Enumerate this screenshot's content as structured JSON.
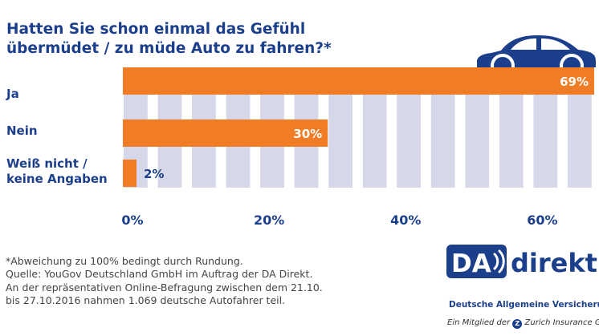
{
  "title": {
    "line1": "Hatten Sie schon einmal das Gefühl",
    "line2": "übermüdet / zu müde Auto zu fahren?*"
  },
  "colors": {
    "bar": "#f07d26",
    "background_column": "#d6d8e9",
    "text": "#1c3f8c"
  },
  "icons": [
    "car-icon",
    "wave-icon",
    "zurich-z-icon"
  ],
  "chart_data": {
    "type": "bar",
    "orientation": "horizontal",
    "title": "Hatten Sie schon einmal das Gefühl übermüdet / zu müde Auto zu fahren?*",
    "categories": [
      "Ja",
      "Nein",
      "Weiß nicht / keine Angaben"
    ],
    "category_lines": [
      [
        "Ja"
      ],
      [
        "Nein"
      ],
      [
        "Weiß nicht /",
        "keine Angaben"
      ]
    ],
    "values": [
      69,
      30,
      2
    ],
    "value_labels": [
      "69%",
      "30%",
      "2%"
    ],
    "xlim": [
      0,
      69
    ],
    "ticks": [
      0,
      20,
      40,
      60
    ],
    "tick_labels": [
      "0%",
      "20%",
      "40%",
      "60%"
    ],
    "xlabel": "",
    "ylabel": "",
    "grid": false
  },
  "footnote": {
    "line1": "*Abweichung zu 100% bedingt durch Rundung.",
    "line2": "Quelle: YouGov Deutschland GmbH im Auftrag der DA Direkt.",
    "line3": "An der repräsentativen Online-Befragung zwischen dem 21.10.",
    "line4": "bis 27.10.2016 nahmen 1.069 deutsche Autofahrer teil."
  },
  "logo": {
    "brand_left": "DA",
    "brand_right": "direkt",
    "subtitle": "Deutsche Allgemeine Versicherung",
    "member_prefix": "Ein Mitglied der",
    "member_badge": "Z",
    "member_suffix": "Zurich Insurance Gr"
  }
}
